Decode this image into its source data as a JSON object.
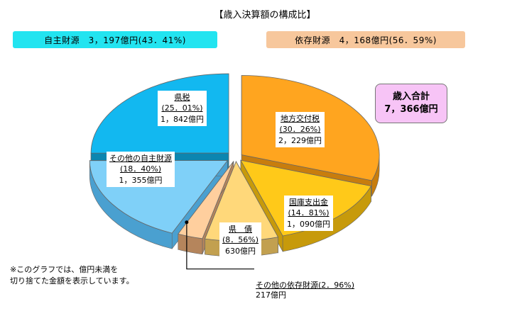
{
  "title": "【歳入決算額の構成比】",
  "groups": {
    "own": {
      "label": "自主財源　3，197億円(43．41%)",
      "color": "#22e4f0"
    },
    "dependent": {
      "label": "依存財源　4，168億円(56．59%)",
      "color": "#f7c79c"
    }
  },
  "total": {
    "label": "歳入合計",
    "value": "7，366億円",
    "color": "#f7c4f6"
  },
  "note": {
    "line1": "※このグラフでは、億円未満を",
    "line2": "切り捨てた金額を表示しています。"
  },
  "chart_data": {
    "type": "pie",
    "unit": "億円",
    "slices": [
      {
        "name": "地方交付税",
        "percent": 30.26,
        "percent_label": "(30．26%)",
        "value": 2229,
        "value_label": "2，229億円",
        "color": "#ffa51f",
        "side": "#c87d0d"
      },
      {
        "name": "国庫支出金",
        "percent": 14.81,
        "percent_label": "(14．81%)",
        "value": 1090,
        "value_label": "1，090億円",
        "color": "#ffc919",
        "side": "#c79a0b"
      },
      {
        "name": "県　債",
        "percent": 8.56,
        "percent_label": "(8．56%)",
        "value": 630,
        "value_label": "630億円",
        "color": "#ffd87a",
        "side": "#c2a050"
      },
      {
        "name": "その他の依存財源",
        "percent": 2.96,
        "percent_label": "(2．96%)",
        "value": 217,
        "value_label": "217億円",
        "color": "#ffcf9e",
        "side": "#b5855c"
      },
      {
        "name": "その他の自主財源",
        "percent": 18.4,
        "percent_label": "(18．40%)",
        "value": 1355,
        "value_label": "1，355億円",
        "color": "#7fd0f8",
        "side": "#4aa0d0"
      },
      {
        "name": "県税",
        "percent": 25.01,
        "percent_label": "(25．01%)",
        "value": 1842,
        "value_label": "1，842億円",
        "color": "#12b8f0",
        "side": "#0c86b0"
      }
    ]
  }
}
